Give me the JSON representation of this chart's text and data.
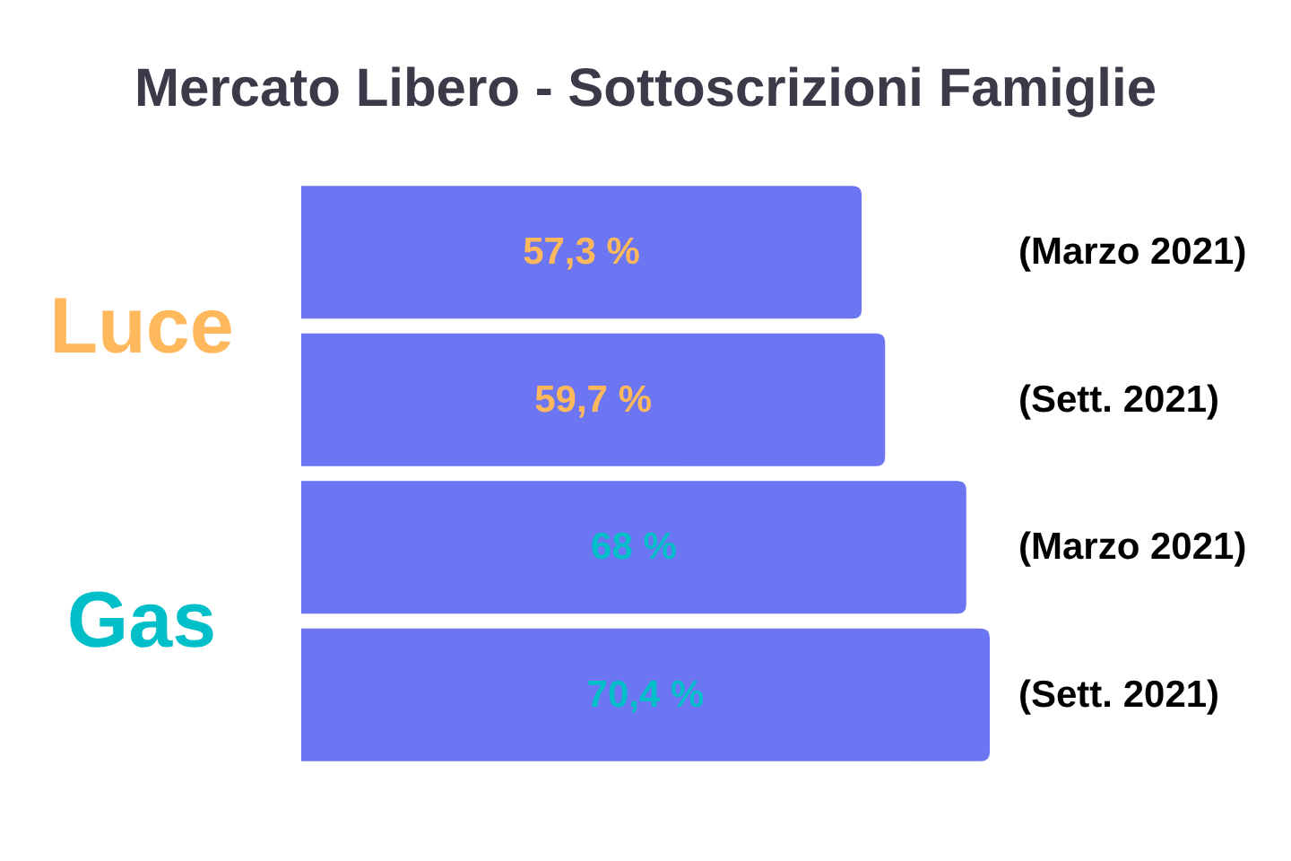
{
  "chart_data": {
    "type": "bar",
    "orientation": "horizontal",
    "title": "Mercato Libero - Sottoscrizioni Famiglie",
    "categories": [
      "(Marzo 2021)",
      "(Sett. 2021)",
      "(Marzo 2021)",
      "(Sett. 2021)"
    ],
    "series": [
      {
        "name": "Luce",
        "color": "#6c76f2",
        "values": [
          57.3,
          59.7,
          null,
          null
        ],
        "value_labels": [
          "57,3 %",
          "59,7 %",
          null,
          null
        ]
      },
      {
        "name": "Gas",
        "color": "#6c76f2",
        "values": [
          null,
          null,
          68,
          70.4
        ],
        "value_labels": [
          null,
          null,
          "68 %",
          "70,4 %"
        ]
      }
    ]
  }
}
